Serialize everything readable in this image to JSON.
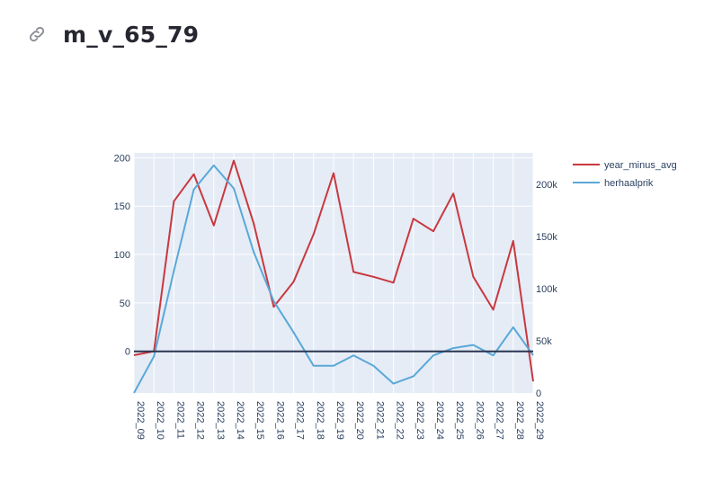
{
  "page": {
    "title": "m_v_65_79",
    "link_icon": "link-icon"
  },
  "chart_data": {
    "type": "line",
    "categories": [
      "2022_09",
      "2022_10",
      "2022_11",
      "2022_12",
      "2022_13",
      "2022_14",
      "2022_15",
      "2022_16",
      "2022_17",
      "2022_18",
      "2022_19",
      "2022_20",
      "2022_21",
      "2022_22",
      "2022_23",
      "2022_24",
      "2022_25",
      "2022_26",
      "2022_27",
      "2022_28",
      "2022_29"
    ],
    "series": [
      {
        "name": "year_minus_avg",
        "axis": "left",
        "color": "#c9383f",
        "values": [
          -4,
          0,
          155,
          183,
          130,
          197,
          132,
          46,
          72,
          121,
          184,
          82,
          77,
          71,
          137,
          124,
          163,
          77,
          43,
          114,
          -31
        ]
      },
      {
        "name": "herhaalprik",
        "axis": "right",
        "color": "#5aa8d8",
        "values": [
          0,
          35000,
          117000,
          195000,
          218000,
          196000,
          135000,
          88000,
          58000,
          26000,
          26000,
          36000,
          26000,
          9000,
          16000,
          36000,
          43000,
          46000,
          36000,
          63000,
          36000
        ]
      }
    ],
    "y_left": {
      "range": [
        -43,
        205
      ],
      "ticks": [
        0,
        50,
        100,
        150,
        200
      ],
      "tick_labels": [
        "0",
        "50",
        "100",
        "150",
        "200"
      ]
    },
    "y_right": {
      "range": [
        0,
        230000
      ],
      "ticks": [
        0,
        50000,
        100000,
        150000,
        200000
      ],
      "tick_labels": [
        "0",
        "50k",
        "100k",
        "150k",
        "200k"
      ]
    },
    "zero_line": {
      "value": 0,
      "color": "#2a3550"
    },
    "grid": true,
    "legend_position": "top-right",
    "plot_bgcolor": "#e5ecf6"
  }
}
